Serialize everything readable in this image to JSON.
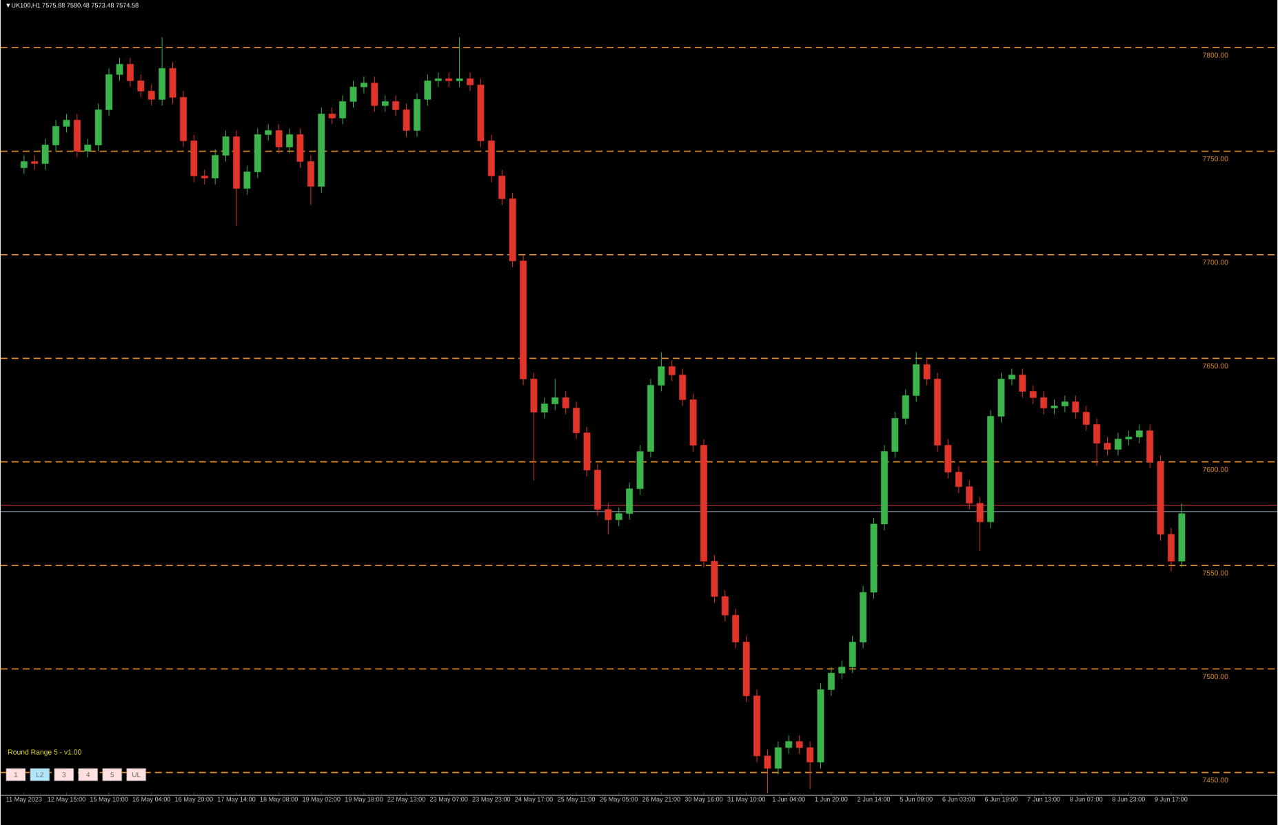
{
  "chart_data": {
    "type": "candlestick",
    "title": "▼UK100,H1 7575.88 7580.48 7573.48 7574.58",
    "annotations": [
      "Round Range 5 - v1.00",
      "1",
      "L2",
      "3",
      "4",
      "5",
      "UL"
    ],
    "categories": [
      "11 May 2023",
      null,
      null,
      null,
      "12 May 15:00",
      null,
      null,
      null,
      "15 May 10:00",
      null,
      null,
      null,
      "16 May 04:00",
      null,
      null,
      null,
      "16 May 20:00",
      null,
      null,
      null,
      "17 May 14:00",
      null,
      null,
      null,
      "18 May 08:00",
      null,
      null,
      null,
      "19 May 02:00",
      null,
      null,
      null,
      "19 May 18:00",
      null,
      null,
      null,
      "22 May 13:00",
      null,
      null,
      null,
      "23 May 07:00",
      null,
      null,
      null,
      "23 May 23:00",
      null,
      null,
      null,
      "24 May 17:00",
      null,
      null,
      null,
      "25 May 11:00",
      null,
      null,
      null,
      "26 May 05:00",
      null,
      null,
      null,
      "26 May 21:00",
      null,
      null,
      null,
      "30 May 16:00",
      null,
      null,
      null,
      "31 May 10:00",
      null,
      null,
      null,
      "1 Jun 04:00",
      null,
      null,
      null,
      "1 Jun 20:00",
      null,
      null,
      null,
      "2 Jun 14:00",
      null,
      null,
      null,
      "5 Jun 09:00",
      null,
      null,
      null,
      "6 Jun 03:00",
      null,
      null,
      null,
      "6 Jun 19:00",
      null,
      null,
      null,
      "7 Jun 13:00",
      null,
      null,
      null,
      "8 Jun 07:00",
      null,
      null,
      null,
      "8 Jun 23:00",
      null,
      null,
      null,
      "9 Jun 17:00",
      null
    ],
    "ohlc": [
      [
        7742,
        7748,
        7739,
        7745
      ],
      [
        7745,
        7748,
        7741,
        7744
      ],
      [
        7744,
        7756,
        7741,
        7753
      ],
      [
        7753,
        7765,
        7750,
        7762
      ],
      [
        7762,
        7768,
        7759,
        7765
      ],
      [
        7765,
        7768,
        7747,
        7750
      ],
      [
        7750,
        7756,
        7747,
        7753
      ],
      [
        7753,
        7773,
        7750,
        7770
      ],
      [
        7770,
        7790,
        7767,
        7787
      ],
      [
        7787,
        7795,
        7784,
        7792
      ],
      [
        7792,
        7795,
        7781,
        7784
      ],
      [
        7784,
        7787,
        7776,
        7779
      ],
      [
        7779,
        7782,
        7772,
        7775
      ],
      [
        7775,
        7805,
        7772,
        7790
      ],
      [
        7790,
        7793,
        7773,
        7776
      ],
      [
        7776,
        7779,
        7752,
        7755
      ],
      [
        7755,
        7758,
        7735,
        7738
      ],
      [
        7738,
        7741,
        7734,
        7737
      ],
      [
        7737,
        7751,
        7734,
        7748
      ],
      [
        7748,
        7760,
        7745,
        7757
      ],
      [
        7757,
        7760,
        7714,
        7732
      ],
      [
        7732,
        7743,
        7729,
        7740
      ],
      [
        7740,
        7761,
        7737,
        7758
      ],
      [
        7758,
        7763,
        7755,
        7760
      ],
      [
        7760,
        7763,
        7749,
        7752
      ],
      [
        7752,
        7761,
        7749,
        7758
      ],
      [
        7758,
        7761,
        7742,
        7745
      ],
      [
        7745,
        7748,
        7724,
        7733
      ],
      [
        7733,
        7771,
        7730,
        7768
      ],
      [
        7768,
        7771,
        7763,
        7766
      ],
      [
        7766,
        7777,
        7763,
        7774
      ],
      [
        7774,
        7784,
        7771,
        7781
      ],
      [
        7781,
        7786,
        7778,
        7783
      ],
      [
        7783,
        7786,
        7769,
        7772
      ],
      [
        7772,
        7777,
        7769,
        7774
      ],
      [
        7774,
        7777,
        7767,
        7770
      ],
      [
        7770,
        7773,
        7757,
        7760
      ],
      [
        7760,
        7778,
        7757,
        7775
      ],
      [
        7775,
        7787,
        7772,
        7784
      ],
      [
        7784,
        7788,
        7781,
        7785
      ],
      [
        7785,
        7788,
        7781,
        7784
      ],
      [
        7784,
        7805,
        7781,
        7785
      ],
      [
        7785,
        7788,
        7779,
        7782
      ],
      [
        7782,
        7785,
        7752,
        7755
      ],
      [
        7755,
        7758,
        7735,
        7738
      ],
      [
        7738,
        7741,
        7724,
        7727
      ],
      [
        7727,
        7730,
        7694,
        7697
      ],
      [
        7697,
        7700,
        7637,
        7640
      ],
      [
        7640,
        7643,
        7591,
        7624
      ],
      [
        7624,
        7631,
        7621,
        7628
      ],
      [
        7628,
        7640,
        7625,
        7631
      ],
      [
        7631,
        7634,
        7623,
        7626
      ],
      [
        7626,
        7629,
        7611,
        7614
      ],
      [
        7614,
        7617,
        7593,
        7596
      ],
      [
        7596,
        7599,
        7574,
        7577
      ],
      [
        7577,
        7580,
        7565,
        7572
      ],
      [
        7572,
        7578,
        7569,
        7575
      ],
      [
        7575,
        7590,
        7572,
        7587
      ],
      [
        7587,
        7608,
        7584,
        7605
      ],
      [
        7605,
        7640,
        7602,
        7637
      ],
      [
        7637,
        7653,
        7634,
        7646
      ],
      [
        7646,
        7649,
        7639,
        7642
      ],
      [
        7642,
        7645,
        7627,
        7630
      ],
      [
        7630,
        7633,
        7605,
        7608
      ],
      [
        7608,
        7611,
        7549,
        7552
      ],
      [
        7552,
        7555,
        7532,
        7535
      ],
      [
        7535,
        7538,
        7523,
        7526
      ],
      [
        7526,
        7529,
        7510,
        7513
      ],
      [
        7513,
        7516,
        7484,
        7487
      ],
      [
        7487,
        7490,
        7455,
        7458
      ],
      [
        7458,
        7461,
        7440,
        7452
      ],
      [
        7452,
        7465,
        7449,
        7462
      ],
      [
        7462,
        7468,
        7459,
        7465
      ],
      [
        7465,
        7468,
        7459,
        7462
      ],
      [
        7462,
        7465,
        7442,
        7455
      ],
      [
        7455,
        7493,
        7452,
        7490
      ],
      [
        7490,
        7501,
        7487,
        7498
      ],
      [
        7498,
        7504,
        7495,
        7501
      ],
      [
        7501,
        7516,
        7498,
        7513
      ],
      [
        7513,
        7540,
        7510,
        7537
      ],
      [
        7537,
        7573,
        7534,
        7570
      ],
      [
        7570,
        7608,
        7567,
        7605
      ],
      [
        7605,
        7624,
        7602,
        7621
      ],
      [
        7621,
        7635,
        7618,
        7632
      ],
      [
        7632,
        7653,
        7629,
        7647
      ],
      [
        7647,
        7650,
        7637,
        7640
      ],
      [
        7640,
        7643,
        7605,
        7608
      ],
      [
        7608,
        7611,
        7592,
        7595
      ],
      [
        7595,
        7598,
        7585,
        7588
      ],
      [
        7588,
        7591,
        7577,
        7580
      ],
      [
        7580,
        7583,
        7557,
        7571
      ],
      [
        7571,
        7625,
        7568,
        7622
      ],
      [
        7622,
        7643,
        7619,
        7640
      ],
      [
        7640,
        7645,
        7637,
        7642
      ],
      [
        7642,
        7645,
        7631,
        7634
      ],
      [
        7634,
        7637,
        7628,
        7631
      ],
      [
        7631,
        7634,
        7623,
        7626
      ],
      [
        7626,
        7630,
        7623,
        7627
      ],
      [
        7627,
        7632,
        7624,
        7629
      ],
      [
        7629,
        7632,
        7621,
        7624
      ],
      [
        7624,
        7627,
        7615,
        7618
      ],
      [
        7618,
        7621,
        7598,
        7609
      ],
      [
        7609,
        7612,
        7603,
        7606
      ],
      [
        7606,
        7614,
        7603,
        7611
      ],
      [
        7611,
        7615,
        7608,
        7612
      ],
      [
        7612,
        7618,
        7609,
        7615
      ],
      [
        7615,
        7618,
        7597,
        7600
      ],
      [
        7600,
        7603,
        7562,
        7565
      ],
      [
        7565,
        7568,
        7547,
        7552
      ],
      [
        7552,
        7580,
        7549,
        7575
      ]
    ],
    "ylim": [
      7439,
      7823
    ],
    "yticks": [
      {
        "value": 7450,
        "label": "7450.00"
      },
      {
        "value": 7500,
        "label": "7500.00"
      },
      {
        "value": 7550,
        "label": "7550.00"
      },
      {
        "value": 7600,
        "label": "7600.00"
      },
      {
        "value": 7650,
        "label": "7650.00"
      },
      {
        "value": 7700,
        "label": "7700.00"
      },
      {
        "value": 7750,
        "label": "7750.00"
      },
      {
        "value": 7800,
        "label": "7800.00"
      }
    ],
    "ref_lines": [
      {
        "axis": "y",
        "value": 7579,
        "color": "#b03030"
      },
      {
        "axis": "y",
        "value": 7576,
        "color": "#8090a0"
      }
    ],
    "grid": "y"
  }
}
